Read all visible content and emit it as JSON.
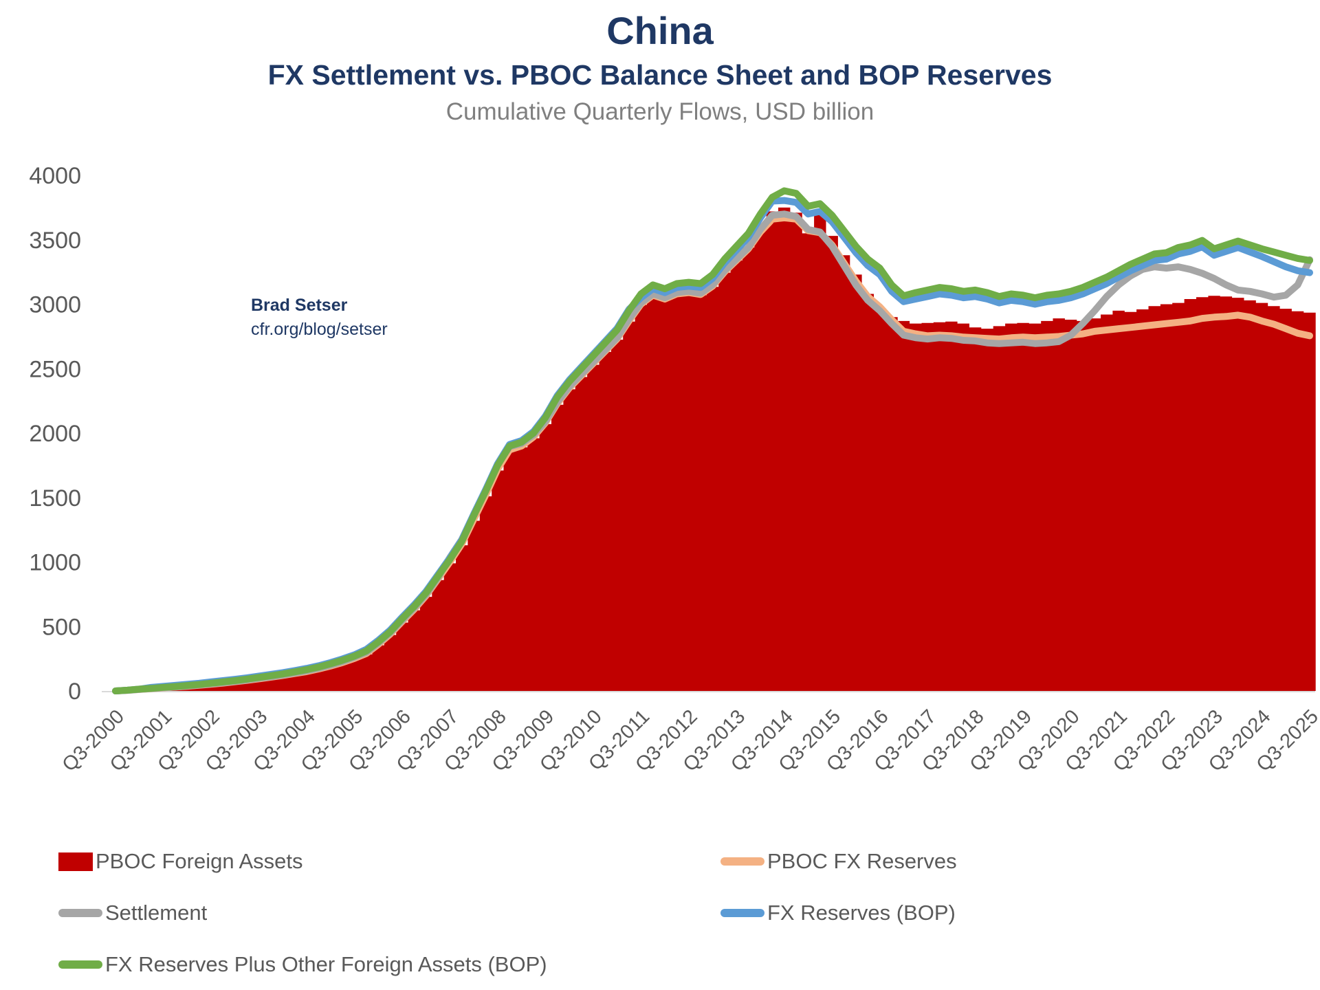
{
  "header": {
    "title": "China",
    "subtitle": "FX Settlement vs. PBOC Balance Sheet and BOP Reserves",
    "caption": "Cumulative Quarterly Flows, USD billion"
  },
  "annotation": {
    "line1": "Brad Setser",
    "line2": "cfr.org/blog/setser"
  },
  "colors": {
    "title_navy": "#1F3864",
    "axis_text": "#595959",
    "axis_line": "#D9D9D9",
    "red": "#C00000",
    "orange": "#F4B183",
    "gray": "#A6A6A6",
    "blue": "#5B9BD5",
    "green": "#70AD47"
  },
  "chart_data": {
    "type": "combo-bar-line",
    "title": "China",
    "subtitle": "FX Settlement vs. PBOC Balance Sheet and BOP Reserves",
    "caption": "Cumulative Quarterly Flows, USD billion",
    "x_unit": "quarters from Q3-2000 to Q3-2025 (101 points)",
    "x_tick_labels": [
      "Q3-2000",
      "Q3-2001",
      "Q3-2002",
      "Q3-2003",
      "Q3-2004",
      "Q3-2005",
      "Q3-2006",
      "Q3-2007",
      "Q3-2008",
      "Q3-2009",
      "Q3-2010",
      "Q3-2011",
      "Q3-2012",
      "Q3-2013",
      "Q3-2014",
      "Q3-2015",
      "Q3-2016",
      "Q3-2017",
      "Q3-2018",
      "Q3-2019",
      "Q3-2020",
      "Q3-2021",
      "Q3-2022",
      "Q3-2023",
      "Q3-2024",
      "Q3-2025"
    ],
    "quarters_per_label": 4,
    "ylim": [
      0,
      4000
    ],
    "y_ticks": [
      0,
      500,
      1000,
      1500,
      2000,
      2500,
      3000,
      3500,
      4000
    ],
    "grid": "none",
    "legend_position": "bottom-two-columns",
    "series": [
      {
        "name": "PBOC Foreign Assets",
        "type": "bar-area",
        "color": "#C00000",
        "values": [
          0,
          4,
          10,
          16,
          22,
          28,
          34,
          42,
          50,
          59,
          68,
          79,
          91,
          103,
          116,
          131,
          146,
          165,
          188,
          215,
          246,
          284,
          354,
          434,
          530,
          625,
          730,
          860,
          990,
          1130,
          1320,
          1510,
          1710,
          1860,
          1890,
          1960,
          2070,
          2220,
          2340,
          2435,
          2530,
          2630,
          2725,
          2865,
          2995,
          3065,
          3035,
          3075,
          3085,
          3070,
          3135,
          3245,
          3340,
          3440,
          3600,
          3720,
          3750,
          3710,
          3550,
          3700,
          3530,
          3380,
          3230,
          3080,
          2960,
          2900,
          2870,
          2850,
          2855,
          2860,
          2865,
          2850,
          2820,
          2810,
          2830,
          2850,
          2855,
          2850,
          2870,
          2890,
          2880,
          2870,
          2890,
          2920,
          2950,
          2940,
          2960,
          2985,
          3000,
          3010,
          3040,
          3055,
          3065,
          3060,
          3050,
          3030,
          3010,
          2985,
          2965,
          2945,
          2935
        ]
      },
      {
        "name": "PBOC FX Reserves",
        "type": "line",
        "color": "#F4B183",
        "values": [
          0,
          5,
          11,
          17,
          24,
          30,
          36,
          44,
          52,
          61,
          71,
          82,
          94,
          106,
          120,
          135,
          150,
          170,
          193,
          220,
          252,
          290,
          360,
          440,
          538,
          632,
          738,
          868,
          1000,
          1140,
          1330,
          1520,
          1720,
          1870,
          1900,
          1970,
          2080,
          2230,
          2350,
          2445,
          2540,
          2635,
          2730,
          2870,
          3000,
          3070,
          3040,
          3080,
          3090,
          3075,
          3140,
          3250,
          3340,
          3430,
          3560,
          3660,
          3670,
          3660,
          3570,
          3555,
          3460,
          3320,
          3180,
          3060,
          2980,
          2880,
          2790,
          2770,
          2755,
          2760,
          2755,
          2745,
          2740,
          2735,
          2730,
          2740,
          2745,
          2740,
          2745,
          2750,
          2760,
          2770,
          2790,
          2800,
          2810,
          2820,
          2830,
          2840,
          2850,
          2860,
          2870,
          2890,
          2900,
          2905,
          2915,
          2900,
          2870,
          2845,
          2810,
          2775,
          2755
        ]
      },
      {
        "name": "Settlement",
        "type": "line",
        "color": "#A6A6A6",
        "values": [
          0,
          5,
          12,
          18,
          25,
          31,
          38,
          46,
          55,
          64,
          74,
          85,
          98,
          110,
          124,
          140,
          156,
          176,
          200,
          228,
          262,
          300,
          370,
          450,
          548,
          642,
          748,
          878,
          1035,
          1175,
          1370,
          1560,
          1755,
          1895,
          1920,
          1985,
          2090,
          2240,
          2360,
          2455,
          2550,
          2645,
          2740,
          2885,
          3010,
          3080,
          3050,
          3090,
          3100,
          3085,
          3150,
          3260,
          3350,
          3440,
          3580,
          3690,
          3700,
          3680,
          3580,
          3560,
          3450,
          3300,
          3150,
          3030,
          2950,
          2850,
          2760,
          2740,
          2730,
          2740,
          2735,
          2720,
          2715,
          2700,
          2695,
          2700,
          2705,
          2695,
          2700,
          2710,
          2760,
          2850,
          2950,
          3060,
          3150,
          3220,
          3270,
          3290,
          3280,
          3290,
          3270,
          3240,
          3200,
          3150,
          3110,
          3100,
          3080,
          3055,
          3070,
          3150,
          3345
        ]
      },
      {
        "name": "FX Reserves (BOP)",
        "type": "line",
        "color": "#5B9BD5",
        "values": [
          0,
          6,
          14,
          28,
          36,
          44,
          52,
          60,
          70,
          80,
          90,
          102,
          115,
          128,
          142,
          158,
          175,
          195,
          220,
          248,
          280,
          322,
          392,
          472,
          572,
          667,
          772,
          902,
          1032,
          1172,
          1372,
          1562,
          1762,
          1912,
          1942,
          2012,
          2132,
          2292,
          2412,
          2512,
          2612,
          2712,
          2812,
          2960,
          3050,
          3120,
          3090,
          3130,
          3140,
          3130,
          3200,
          3320,
          3420,
          3520,
          3670,
          3800,
          3805,
          3790,
          3700,
          3720,
          3640,
          3520,
          3400,
          3300,
          3230,
          3100,
          3020,
          3040,
          3060,
          3080,
          3070,
          3050,
          3060,
          3040,
          3010,
          3030,
          3020,
          3000,
          3020,
          3030,
          3050,
          3080,
          3120,
          3160,
          3210,
          3260,
          3300,
          3340,
          3350,
          3390,
          3410,
          3445,
          3380,
          3410,
          3440,
          3405,
          3370,
          3330,
          3290,
          3260,
          3245
        ]
      },
      {
        "name": "FX Reserves Plus Other Foreign Assets (BOP)",
        "type": "line",
        "color": "#70AD47",
        "values": [
          0,
          6,
          14,
          20,
          28,
          34,
          42,
          50,
          60,
          70,
          80,
          92,
          105,
          118,
          132,
          148,
          165,
          185,
          210,
          238,
          270,
          310,
          380,
          460,
          560,
          655,
          760,
          890,
          1020,
          1160,
          1360,
          1550,
          1750,
          1900,
          1930,
          2000,
          2120,
          2280,
          2400,
          2500,
          2600,
          2700,
          2800,
          2950,
          3080,
          3150,
          3120,
          3160,
          3170,
          3160,
          3230,
          3350,
          3450,
          3550,
          3700,
          3830,
          3880,
          3860,
          3760,
          3780,
          3690,
          3570,
          3450,
          3350,
          3280,
          3150,
          3065,
          3090,
          3110,
          3130,
          3120,
          3100,
          3110,
          3090,
          3060,
          3080,
          3070,
          3050,
          3070,
          3080,
          3100,
          3130,
          3170,
          3210,
          3260,
          3310,
          3350,
          3390,
          3400,
          3440,
          3460,
          3495,
          3430,
          3460,
          3490,
          3460,
          3430,
          3405,
          3380,
          3355,
          3340
        ]
      }
    ],
    "legend_columns": [
      [
        0,
        2,
        4
      ],
      [
        1,
        3
      ]
    ]
  }
}
